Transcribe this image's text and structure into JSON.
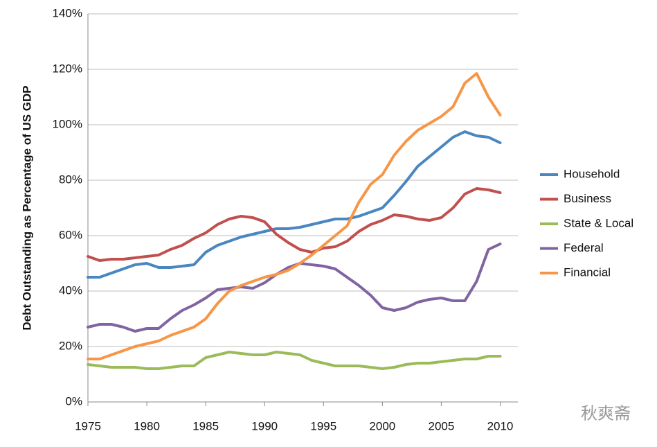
{
  "chart_data": {
    "type": "line",
    "y_label": "Debt Outstanding as Percentage of US GDP",
    "x": [
      1975,
      1976,
      1977,
      1978,
      1979,
      1980,
      1981,
      1982,
      1983,
      1984,
      1985,
      1986,
      1987,
      1988,
      1989,
      1990,
      1991,
      1992,
      1993,
      1994,
      1995,
      1996,
      1997,
      1998,
      1999,
      2000,
      2001,
      2002,
      2003,
      2004,
      2005,
      2006,
      2007,
      2008,
      2009,
      2010
    ],
    "series": [
      {
        "name": "Household",
        "color": "#4a86c0",
        "values": [
          45,
          45,
          46.5,
          48,
          49.5,
          50,
          48.5,
          48.5,
          49,
          49.5,
          54,
          56.5,
          58,
          59.5,
          60.5,
          61.5,
          62.5,
          62.5,
          63,
          64,
          65,
          66,
          66,
          67,
          68.5,
          70,
          74.5,
          79.5,
          85,
          88.5,
          92,
          95.5,
          97.5,
          96,
          95.5,
          93.5
        ]
      },
      {
        "name": "Business",
        "color": "#c0504d",
        "values": [
          52.5,
          51,
          51.5,
          51.5,
          52,
          52.5,
          53,
          55,
          56.5,
          59,
          61,
          64,
          66,
          67,
          66.5,
          65,
          60.5,
          57.5,
          55,
          54,
          55.5,
          56,
          58,
          61.5,
          64,
          65.5,
          67.5,
          67,
          66,
          65.5,
          66.5,
          70,
          75,
          77,
          76.5,
          75.5
        ]
      },
      {
        "name": "State & Local",
        "color": "#9bbb59",
        "values": [
          13.5,
          13,
          12.5,
          12.5,
          12.5,
          12,
          12,
          12.5,
          13,
          13,
          16,
          17,
          18,
          17.5,
          17,
          17,
          18,
          17.5,
          17,
          15,
          14,
          13,
          13,
          13,
          12.5,
          12,
          12.5,
          13.5,
          14,
          14,
          14.5,
          15,
          15.5,
          15.5,
          16.5,
          16.5
        ]
      },
      {
        "name": "Federal",
        "color": "#8064a2",
        "values": [
          27,
          28,
          28,
          27,
          25.5,
          26.5,
          26.5,
          30,
          33,
          35,
          37.5,
          40.5,
          41,
          41.5,
          41,
          43,
          46,
          48.5,
          50,
          49.5,
          49,
          48,
          45,
          42,
          38.5,
          34,
          33,
          34,
          36,
          37,
          37.5,
          36.5,
          36.5,
          43.5,
          55,
          57
        ]
      },
      {
        "name": "Financial",
        "color": "#f79646",
        "values": [
          15.5,
          15.5,
          17,
          18.5,
          20,
          21,
          22,
          24,
          25.5,
          27,
          30,
          35.5,
          40,
          42,
          43.5,
          45,
          46,
          47.5,
          50,
          53,
          56.5,
          60,
          63.5,
          72,
          78.5,
          82,
          89,
          94,
          98,
          100.5,
          103,
          106.5,
          115,
          118.5,
          110,
          103.5
        ]
      }
    ],
    "xlim": [
      1975,
      2011.5
    ],
    "xticks": [
      1975,
      1980,
      1985,
      1990,
      1995,
      2000,
      2005,
      2010
    ],
    "ylim": [
      0,
      140
    ],
    "yticks": [
      {
        "value": 0,
        "label": "0%"
      },
      {
        "value": 20,
        "label": "20%"
      },
      {
        "value": 40,
        "label": "40%"
      },
      {
        "value": 60,
        "label": "60%"
      },
      {
        "value": 80,
        "label": "80%"
      },
      {
        "value": 100,
        "label": "100%"
      },
      {
        "value": 120,
        "label": "120%"
      },
      {
        "value": 140,
        "label": "140%"
      }
    ],
    "grid": true,
    "legend": "right",
    "watermark": "秋爽斋"
  }
}
